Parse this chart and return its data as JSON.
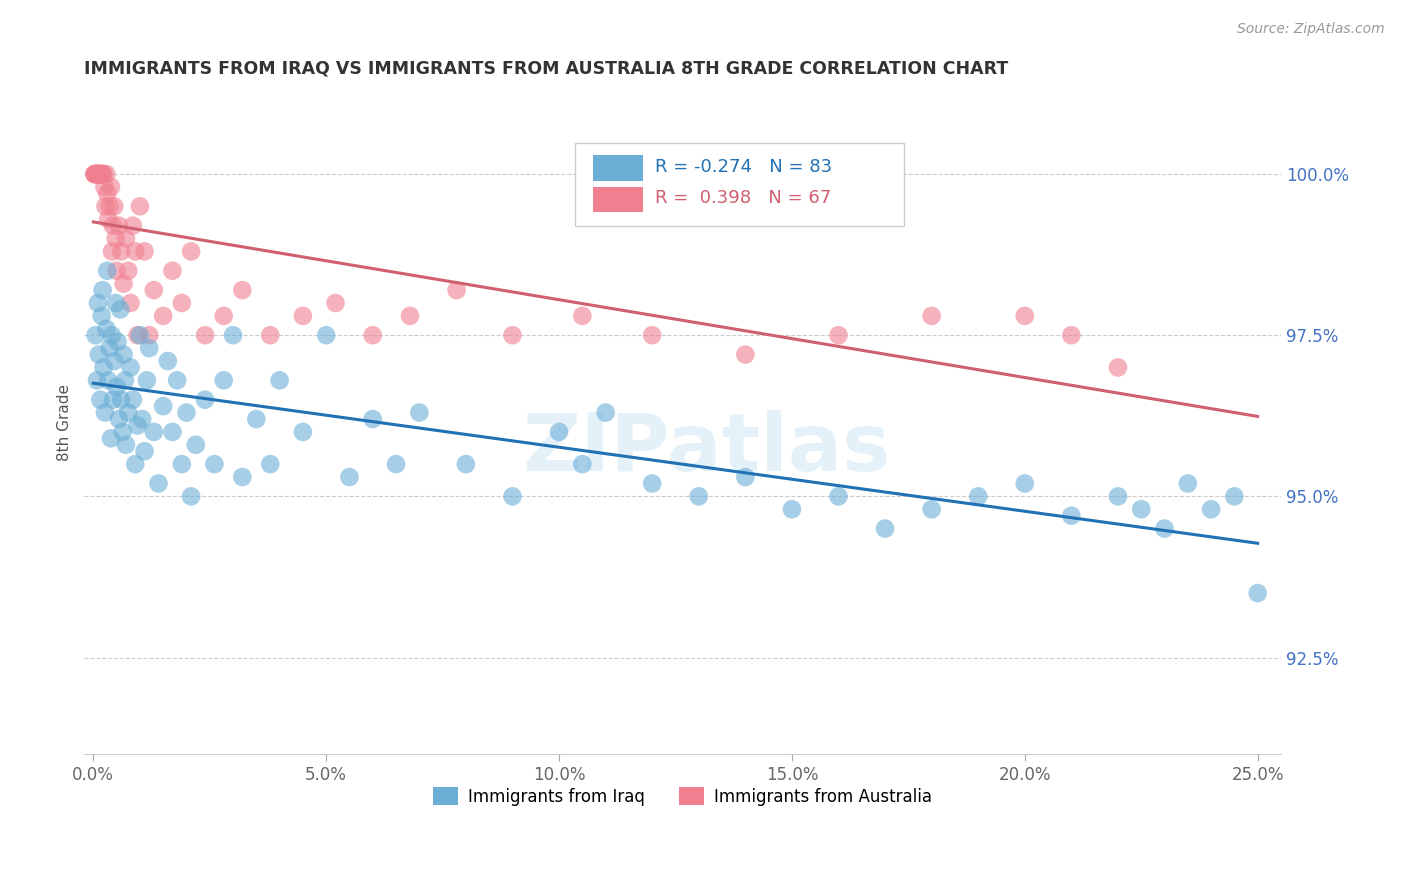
{
  "title": "IMMIGRANTS FROM IRAQ VS IMMIGRANTS FROM AUSTRALIA 8TH GRADE CORRELATION CHART",
  "source": "Source: ZipAtlas.com",
  "xlim": [
    -0.2,
    25.5
  ],
  "ylim": [
    91.0,
    101.3
  ],
  "ylabel": "8th Grade",
  "legend_iraq": "Immigrants from Iraq",
  "legend_australia": "Immigrants from Australia",
  "R_iraq": -0.274,
  "N_iraq": 83,
  "R_australia": 0.398,
  "N_australia": 67,
  "iraq_color": "#6baed6",
  "australia_color": "#f08090",
  "iraq_line_color": "#2171b5",
  "australia_line_color": "#d06070",
  "yticks": [
    92.5,
    95.0,
    97.5,
    100.0
  ],
  "xticks": [
    0.0,
    5.0,
    10.0,
    15.0,
    20.0,
    25.0
  ],
  "xtick_labels": [
    "0.0%",
    "5.0%",
    "10.0%",
    "15.0%",
    "20.0%",
    "25.0%"
  ],
  "ytick_labels": [
    "92.5%",
    "95.0%",
    "97.5%",
    "100.0%"
  ],
  "iraq_x": [
    0.05,
    0.08,
    0.1,
    0.12,
    0.15,
    0.18,
    0.2,
    0.22,
    0.25,
    0.28,
    0.3,
    0.32,
    0.35,
    0.38,
    0.4,
    0.42,
    0.45,
    0.48,
    0.5,
    0.52,
    0.55,
    0.58,
    0.6,
    0.63,
    0.65,
    0.68,
    0.7,
    0.75,
    0.8,
    0.85,
    0.9,
    0.95,
    1.0,
    1.05,
    1.1,
    1.15,
    1.2,
    1.3,
    1.4,
    1.5,
    1.6,
    1.7,
    1.8,
    1.9,
    2.0,
    2.1,
    2.2,
    2.4,
    2.6,
    2.8,
    3.0,
    3.2,
    3.5,
    3.8,
    4.0,
    4.5,
    5.0,
    5.5,
    6.0,
    6.5,
    7.0,
    8.0,
    9.0,
    10.0,
    10.5,
    11.0,
    12.0,
    13.0,
    14.0,
    15.0,
    16.0,
    17.0,
    18.0,
    19.0,
    20.0,
    21.0,
    22.0,
    22.5,
    23.0,
    23.5,
    24.0,
    24.5,
    25.0
  ],
  "iraq_y": [
    97.5,
    96.8,
    98.0,
    97.2,
    96.5,
    97.8,
    98.2,
    97.0,
    96.3,
    97.6,
    98.5,
    96.8,
    97.3,
    95.9,
    97.5,
    96.5,
    97.1,
    98.0,
    96.7,
    97.4,
    96.2,
    97.9,
    96.5,
    96.0,
    97.2,
    96.8,
    95.8,
    96.3,
    97.0,
    96.5,
    95.5,
    96.1,
    97.5,
    96.2,
    95.7,
    96.8,
    97.3,
    96.0,
    95.2,
    96.4,
    97.1,
    96.0,
    96.8,
    95.5,
    96.3,
    95.0,
    95.8,
    96.5,
    95.5,
    96.8,
    97.5,
    95.3,
    96.2,
    95.5,
    96.8,
    96.0,
    97.5,
    95.3,
    96.2,
    95.5,
    96.3,
    95.5,
    95.0,
    96.0,
    95.5,
    96.3,
    95.2,
    95.0,
    95.3,
    94.8,
    95.0,
    94.5,
    94.8,
    95.0,
    95.2,
    94.7,
    95.0,
    94.8,
    94.5,
    95.2,
    94.8,
    95.0,
    93.5
  ],
  "australia_x": [
    0.02,
    0.03,
    0.04,
    0.05,
    0.06,
    0.07,
    0.08,
    0.09,
    0.1,
    0.11,
    0.12,
    0.13,
    0.14,
    0.15,
    0.16,
    0.17,
    0.18,
    0.19,
    0.2,
    0.22,
    0.24,
    0.26,
    0.28,
    0.3,
    0.32,
    0.35,
    0.38,
    0.4,
    0.42,
    0.45,
    0.48,
    0.5,
    0.55,
    0.6,
    0.65,
    0.7,
    0.75,
    0.8,
    0.85,
    0.9,
    0.95,
    1.0,
    1.1,
    1.2,
    1.3,
    1.5,
    1.7,
    1.9,
    2.1,
    2.4,
    2.8,
    3.2,
    3.8,
    4.5,
    5.2,
    6.0,
    6.8,
    7.8,
    9.0,
    10.5,
    12.0,
    14.0,
    16.0,
    18.0,
    20.0,
    21.0,
    22.0
  ],
  "australia_y": [
    100.0,
    100.0,
    100.0,
    100.0,
    100.0,
    100.0,
    100.0,
    100.0,
    100.0,
    100.0,
    100.0,
    100.0,
    100.0,
    100.0,
    100.0,
    100.0,
    100.0,
    100.0,
    100.0,
    100.0,
    99.8,
    99.5,
    100.0,
    99.7,
    99.3,
    99.5,
    99.8,
    98.8,
    99.2,
    99.5,
    99.0,
    98.5,
    99.2,
    98.8,
    98.3,
    99.0,
    98.5,
    98.0,
    99.2,
    98.8,
    97.5,
    99.5,
    98.8,
    97.5,
    98.2,
    97.8,
    98.5,
    98.0,
    98.8,
    97.5,
    97.8,
    98.2,
    97.5,
    97.8,
    98.0,
    97.5,
    97.8,
    98.2,
    97.5,
    97.8,
    97.5,
    97.2,
    97.5,
    97.8,
    97.8,
    97.5,
    97.0
  ]
}
